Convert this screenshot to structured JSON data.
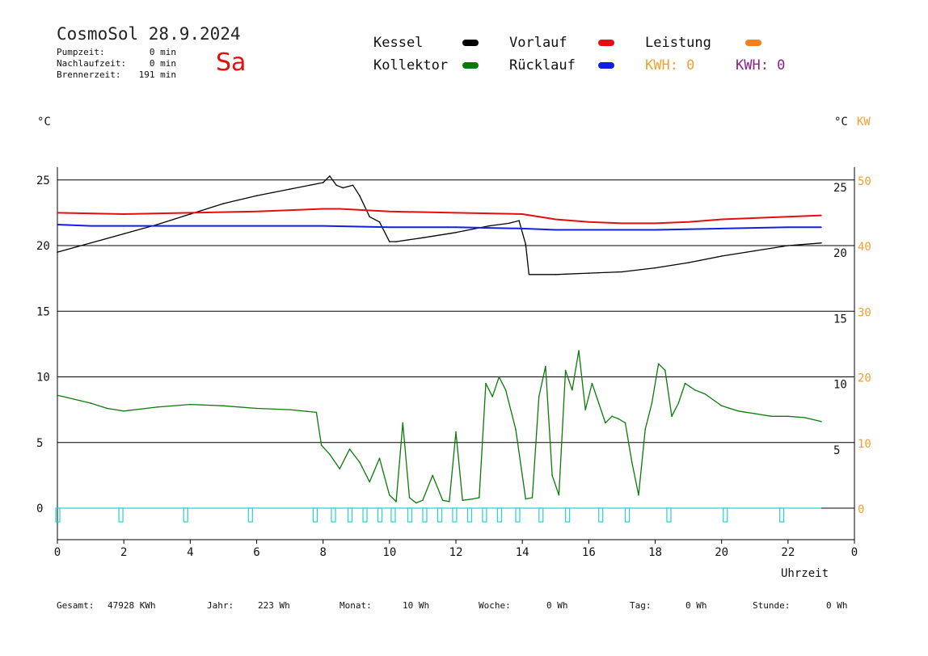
{
  "header": {
    "title": "CosmoSol 28.9.2024",
    "day": "Sa",
    "stats": [
      {
        "label": "Pumpzeit:",
        "value": "0 min"
      },
      {
        "label": "Nachlaufzeit:",
        "value": "0 min"
      },
      {
        "label": "Brennerzeit:",
        "value": "191 min"
      }
    ]
  },
  "legend": {
    "kessel": "Kessel",
    "kollektor": "Kollektor",
    "vorlauf": "Vorlauf",
    "ruecklauf": "Rücklauf",
    "leistung": "Leistung",
    "kwh_orange": "KWH: 0",
    "kwh_purple": "KWH: 0"
  },
  "colors": {
    "kessel": "#000000",
    "kollektor": "#0a7a0a",
    "vorlauf": "#e01010",
    "ruecklauf": "#1020e0",
    "leistung": "#f08020",
    "kwh_purple": "#8a1f8a",
    "cyan": "#22d3d3",
    "orange_text": "#f0a030"
  },
  "axis": {
    "left_unit": "°C",
    "right_unit": "°C",
    "right_unit2": "KW",
    "xlabel": "Uhrzeit"
  },
  "footer": [
    {
      "label": "Gesamt:",
      "value": "47928 KWh"
    },
    {
      "label": "Jahr:",
      "value": "223 Wh"
    },
    {
      "label": "Monat:",
      "value": "10 Wh"
    },
    {
      "label": "Woche:",
      "value": "0 Wh"
    },
    {
      "label": "Tag:",
      "value": "0 Wh"
    },
    {
      "label": "Stunde:",
      "value": "0 Wh"
    }
  ],
  "chart_data": {
    "type": "line",
    "xlabel": "Uhrzeit",
    "ylabel": "°C",
    "x_ticks": [
      "0",
      "2",
      "4",
      "6",
      "8",
      "10",
      "12",
      "14",
      "16",
      "18",
      "20",
      "22",
      "0"
    ],
    "y_left_ticks": [
      0,
      5,
      10,
      15,
      20,
      25
    ],
    "y_right_upper_ticks": [
      20,
      25
    ],
    "y_right_lower_ticks": [
      5,
      10,
      15
    ],
    "y_right_kw_ticks": [
      0,
      10,
      20,
      30,
      40,
      50
    ],
    "xlim": [
      0,
      24
    ],
    "ylim": [
      -1.5,
      26
    ],
    "grid_y": [
      0,
      5,
      10,
      15,
      20,
      25
    ],
    "series": [
      {
        "name": "Kessel",
        "key": "kessel",
        "x": [
          0,
          1,
          2,
          3,
          4,
          5,
          6,
          7,
          8,
          8.2,
          8.4,
          8.6,
          8.9,
          9.1,
          9.4,
          9.7,
          10,
          10.2,
          11,
          12,
          13,
          13.6,
          13.9,
          14.1,
          14.2,
          15,
          16,
          17,
          18,
          19,
          20,
          21,
          22,
          23
        ],
        "y": [
          19.5,
          20.2,
          20.9,
          21.6,
          22.4,
          23.2,
          23.8,
          24.3,
          24.8,
          25.3,
          24.6,
          24.4,
          24.6,
          23.8,
          22.2,
          21.8,
          20.3,
          20.3,
          20.6,
          21.0,
          21.5,
          21.7,
          21.9,
          20.1,
          17.8,
          17.8,
          17.9,
          18.0,
          18.3,
          18.7,
          19.2,
          19.6,
          20.0,
          20.2
        ]
      },
      {
        "name": "Vorlauf",
        "key": "vorlauf",
        "x": [
          0,
          2,
          4,
          6,
          8,
          8.5,
          10,
          12,
          14,
          15,
          16,
          17,
          18,
          19,
          20,
          21,
          22,
          23
        ],
        "y": [
          22.5,
          22.4,
          22.5,
          22.6,
          22.8,
          22.8,
          22.6,
          22.5,
          22.4,
          22.0,
          21.8,
          21.7,
          21.7,
          21.8,
          22.0,
          22.1,
          22.2,
          22.3
        ]
      },
      {
        "name": "Rücklauf",
        "key": "ruecklauf",
        "x": [
          0,
          1,
          2,
          4,
          6,
          8,
          10,
          12,
          14,
          15,
          16,
          18,
          20,
          22,
          23
        ],
        "y": [
          21.6,
          21.5,
          21.5,
          21.5,
          21.5,
          21.5,
          21.4,
          21.4,
          21.3,
          21.2,
          21.2,
          21.2,
          21.3,
          21.4,
          21.4
        ],
        "note": ""
      },
      {
        "name": "Kollektor",
        "key": "kollektor",
        "x": [
          0,
          1,
          1.5,
          2,
          3,
          4,
          5,
          6,
          7,
          7.8,
          7.95,
          8.2,
          8.5,
          8.8,
          9.1,
          9.4,
          9.7,
          10,
          10.2,
          10.4,
          10.6,
          10.8,
          11,
          11.3,
          11.6,
          11.8,
          12,
          12.2,
          12.5,
          12.7,
          12.9,
          13.1,
          13.3,
          13.5,
          13.8,
          14.1,
          14.3,
          14.5,
          14.7,
          14.9,
          15.1,
          15.3,
          15.5,
          15.7,
          15.9,
          16.1,
          16.3,
          16.5,
          16.7,
          16.9,
          17.1,
          17.3,
          17.5,
          17.7,
          17.9,
          18.1,
          18.3,
          18.5,
          18.7,
          18.9,
          19.2,
          19.5,
          20,
          20.5,
          21,
          21.5,
          22,
          22.5,
          23
        ],
        "y": [
          8.6,
          8.0,
          7.6,
          7.4,
          7.7,
          7.9,
          7.8,
          7.6,
          7.5,
          7.3,
          4.8,
          4.1,
          3.0,
          4.5,
          3.5,
          2.0,
          3.8,
          1.0,
          0.5,
          6.5,
          0.8,
          0.4,
          0.6,
          2.5,
          0.6,
          0.5,
          5.8,
          0.6,
          0.7,
          0.8,
          9.5,
          8.5,
          10.0,
          9.0,
          6.0,
          0.7,
          0.8,
          8.5,
          10.8,
          2.5,
          1.0,
          10.5,
          9.0,
          12.0,
          7.5,
          9.5,
          8.0,
          6.5,
          7.0,
          6.8,
          6.5,
          3.5,
          1.0,
          6.0,
          8.0,
          11.0,
          10.5,
          7.0,
          8.0,
          9.5,
          9.0,
          8.7,
          7.8,
          7.4,
          7.2,
          7.0,
          7.0,
          6.9,
          6.6
        ]
      },
      {
        "name": "Leistung",
        "key": "cyan",
        "baseline": 0,
        "pulse_x": [
          0,
          1.9,
          3.85,
          5.8,
          7.75,
          8.3,
          8.8,
          9.25,
          9.7,
          10.1,
          10.6,
          11.05,
          11.5,
          11.95,
          12.4,
          12.85,
          13.3,
          13.85,
          14.55,
          15.35,
          16.35,
          17.15,
          18.4,
          20.1,
          21.8
        ]
      }
    ]
  }
}
